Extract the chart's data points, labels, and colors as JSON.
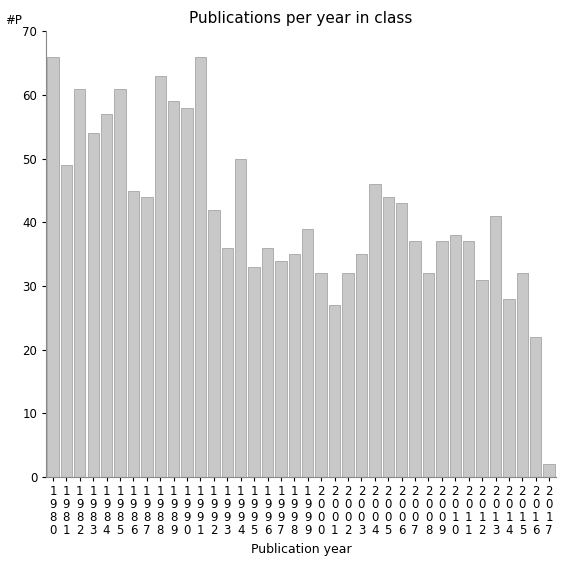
{
  "years": [
    "1980",
    "1981",
    "1982",
    "1983",
    "1984",
    "1985",
    "1986",
    "1987",
    "1988",
    "1989",
    "1990",
    "1991",
    "1992",
    "1993",
    "1994",
    "1995",
    "1996",
    "1997",
    "1998",
    "1999",
    "2000",
    "2001",
    "2002",
    "2003",
    "2004",
    "2005",
    "2006",
    "2007",
    "2008",
    "2009",
    "2010",
    "2011",
    "2012",
    "2013",
    "2014",
    "2015",
    "2016",
    "2017"
  ],
  "values": [
    66,
    49,
    61,
    54,
    57,
    61,
    45,
    44,
    63,
    59,
    58,
    66,
    42,
    36,
    50,
    33,
    36,
    34,
    35,
    39,
    32,
    27,
    32,
    35,
    46,
    44,
    43,
    37,
    32,
    37,
    38,
    37,
    31,
    41,
    28,
    32,
    22,
    2
  ],
  "title": "Publications per year in class",
  "xlabel": "Publication year",
  "ylabel": "#P",
  "ylim": [
    0,
    70
  ],
  "yticks": [
    0,
    10,
    20,
    30,
    40,
    50,
    60,
    70
  ],
  "bar_color": "#c8c8c8",
  "bar_edgecolor": "#999999",
  "background_color": "#ffffff",
  "title_fontsize": 11,
  "axis_label_fontsize": 9,
  "tick_fontsize": 8.5
}
